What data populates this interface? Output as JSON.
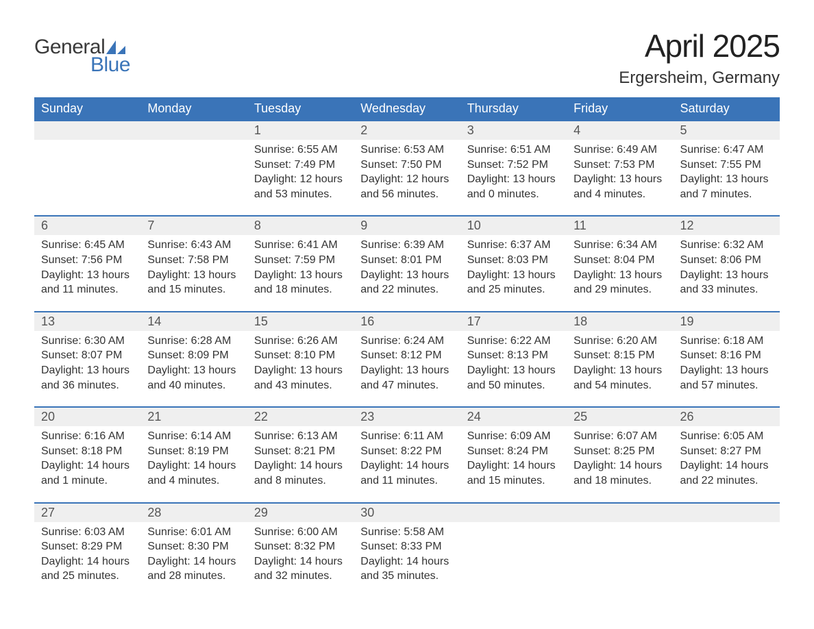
{
  "logo": {
    "text_general": "General",
    "text_blue": "Blue",
    "sail_color": "#3a74b8",
    "general_color": "#3a3a3a"
  },
  "header": {
    "month_title": "April 2025",
    "location": "Ergersheim, Germany"
  },
  "styling": {
    "header_bg": "#3a74b8",
    "header_text": "#ffffff",
    "daynum_bg": "#efefef",
    "row_border_color": "#3a74b8",
    "body_text_color": "#333333",
    "daynum_text_color": "#555555",
    "page_bg": "#ffffff",
    "title_fontsize": 46,
    "location_fontsize": 24,
    "header_fontsize": 18,
    "daynum_fontsize": 18,
    "detail_fontsize": 16
  },
  "calendar": {
    "columns": [
      "Sunday",
      "Monday",
      "Tuesday",
      "Wednesday",
      "Thursday",
      "Friday",
      "Saturday"
    ],
    "weeks": [
      [
        null,
        null,
        {
          "day": "1",
          "sunrise": "6:55 AM",
          "sunset": "7:49 PM",
          "daylight": "12 hours and 53 minutes."
        },
        {
          "day": "2",
          "sunrise": "6:53 AM",
          "sunset": "7:50 PM",
          "daylight": "12 hours and 56 minutes."
        },
        {
          "day": "3",
          "sunrise": "6:51 AM",
          "sunset": "7:52 PM",
          "daylight": "13 hours and 0 minutes."
        },
        {
          "day": "4",
          "sunrise": "6:49 AM",
          "sunset": "7:53 PM",
          "daylight": "13 hours and 4 minutes."
        },
        {
          "day": "5",
          "sunrise": "6:47 AM",
          "sunset": "7:55 PM",
          "daylight": "13 hours and 7 minutes."
        }
      ],
      [
        {
          "day": "6",
          "sunrise": "6:45 AM",
          "sunset": "7:56 PM",
          "daylight": "13 hours and 11 minutes."
        },
        {
          "day": "7",
          "sunrise": "6:43 AM",
          "sunset": "7:58 PM",
          "daylight": "13 hours and 15 minutes."
        },
        {
          "day": "8",
          "sunrise": "6:41 AM",
          "sunset": "7:59 PM",
          "daylight": "13 hours and 18 minutes."
        },
        {
          "day": "9",
          "sunrise": "6:39 AM",
          "sunset": "8:01 PM",
          "daylight": "13 hours and 22 minutes."
        },
        {
          "day": "10",
          "sunrise": "6:37 AM",
          "sunset": "8:03 PM",
          "daylight": "13 hours and 25 minutes."
        },
        {
          "day": "11",
          "sunrise": "6:34 AM",
          "sunset": "8:04 PM",
          "daylight": "13 hours and 29 minutes."
        },
        {
          "day": "12",
          "sunrise": "6:32 AM",
          "sunset": "8:06 PM",
          "daylight": "13 hours and 33 minutes."
        }
      ],
      [
        {
          "day": "13",
          "sunrise": "6:30 AM",
          "sunset": "8:07 PM",
          "daylight": "13 hours and 36 minutes."
        },
        {
          "day": "14",
          "sunrise": "6:28 AM",
          "sunset": "8:09 PM",
          "daylight": "13 hours and 40 minutes."
        },
        {
          "day": "15",
          "sunrise": "6:26 AM",
          "sunset": "8:10 PM",
          "daylight": "13 hours and 43 minutes."
        },
        {
          "day": "16",
          "sunrise": "6:24 AM",
          "sunset": "8:12 PM",
          "daylight": "13 hours and 47 minutes."
        },
        {
          "day": "17",
          "sunrise": "6:22 AM",
          "sunset": "8:13 PM",
          "daylight": "13 hours and 50 minutes."
        },
        {
          "day": "18",
          "sunrise": "6:20 AM",
          "sunset": "8:15 PM",
          "daylight": "13 hours and 54 minutes."
        },
        {
          "day": "19",
          "sunrise": "6:18 AM",
          "sunset": "8:16 PM",
          "daylight": "13 hours and 57 minutes."
        }
      ],
      [
        {
          "day": "20",
          "sunrise": "6:16 AM",
          "sunset": "8:18 PM",
          "daylight": "14 hours and 1 minute."
        },
        {
          "day": "21",
          "sunrise": "6:14 AM",
          "sunset": "8:19 PM",
          "daylight": "14 hours and 4 minutes."
        },
        {
          "day": "22",
          "sunrise": "6:13 AM",
          "sunset": "8:21 PM",
          "daylight": "14 hours and 8 minutes."
        },
        {
          "day": "23",
          "sunrise": "6:11 AM",
          "sunset": "8:22 PM",
          "daylight": "14 hours and 11 minutes."
        },
        {
          "day": "24",
          "sunrise": "6:09 AM",
          "sunset": "8:24 PM",
          "daylight": "14 hours and 15 minutes."
        },
        {
          "day": "25",
          "sunrise": "6:07 AM",
          "sunset": "8:25 PM",
          "daylight": "14 hours and 18 minutes."
        },
        {
          "day": "26",
          "sunrise": "6:05 AM",
          "sunset": "8:27 PM",
          "daylight": "14 hours and 22 minutes."
        }
      ],
      [
        {
          "day": "27",
          "sunrise": "6:03 AM",
          "sunset": "8:29 PM",
          "daylight": "14 hours and 25 minutes."
        },
        {
          "day": "28",
          "sunrise": "6:01 AM",
          "sunset": "8:30 PM",
          "daylight": "14 hours and 28 minutes."
        },
        {
          "day": "29",
          "sunrise": "6:00 AM",
          "sunset": "8:32 PM",
          "daylight": "14 hours and 32 minutes."
        },
        {
          "day": "30",
          "sunrise": "5:58 AM",
          "sunset": "8:33 PM",
          "daylight": "14 hours and 35 minutes."
        },
        null,
        null,
        null
      ]
    ],
    "labels": {
      "sunrise_prefix": "Sunrise: ",
      "sunset_prefix": "Sunset: ",
      "daylight_prefix": "Daylight: "
    }
  }
}
